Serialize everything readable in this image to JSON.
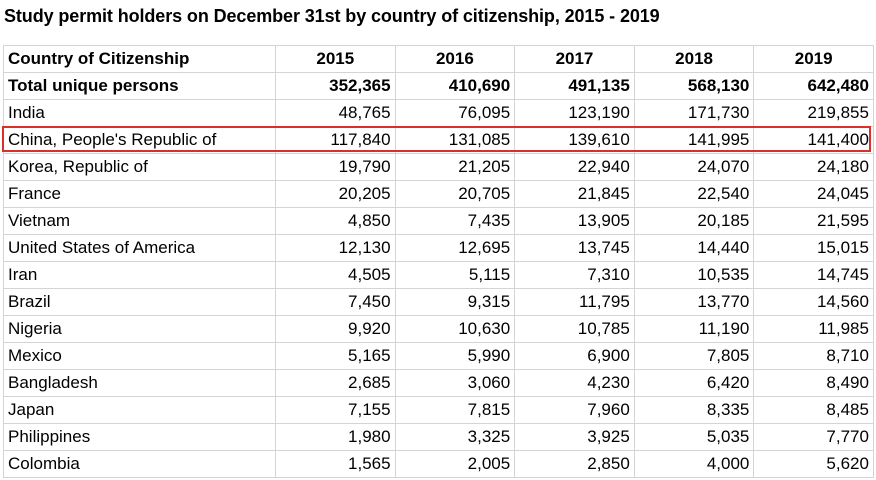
{
  "title": "Study permit holders on December 31st by country of citizenship, 2015 - 2019",
  "header": {
    "country": "Country of Citizenship",
    "years": [
      "2015",
      "2016",
      "2017",
      "2018",
      "2019"
    ]
  },
  "highlight_color": "#d9302c",
  "rows": [
    {
      "country": "Total unique persons",
      "values": [
        "352,365",
        "410,690",
        "491,135",
        "568,130",
        "642,480"
      ]
    },
    {
      "country": "India",
      "values": [
        "48,765",
        "76,095",
        "123,190",
        "171,730",
        "219,855"
      ]
    },
    {
      "country": "China, People's Republic of",
      "values": [
        "117,840",
        "131,085",
        "139,610",
        "141,995",
        "141,400"
      ]
    },
    {
      "country": "Korea, Republic of",
      "values": [
        "19,790",
        "21,205",
        "22,940",
        "24,070",
        "24,180"
      ]
    },
    {
      "country": "France",
      "values": [
        "20,205",
        "20,705",
        "21,845",
        "22,540",
        "24,045"
      ]
    },
    {
      "country": "Vietnam",
      "values": [
        "4,850",
        "7,435",
        "13,905",
        "20,185",
        "21,595"
      ]
    },
    {
      "country": "United States of America",
      "values": [
        "12,130",
        "12,695",
        "13,745",
        "14,440",
        "15,015"
      ]
    },
    {
      "country": "Iran",
      "values": [
        "4,505",
        "5,115",
        "7,310",
        "10,535",
        "14,745"
      ]
    },
    {
      "country": "Brazil",
      "values": [
        "7,450",
        "9,315",
        "11,795",
        "13,770",
        "14,560"
      ]
    },
    {
      "country": "Nigeria",
      "values": [
        "9,920",
        "10,630",
        "10,785",
        "11,190",
        "11,985"
      ]
    },
    {
      "country": "Mexico",
      "values": [
        "5,165",
        "5,990",
        "6,900",
        "7,805",
        "8,710"
      ]
    },
    {
      "country": "Bangladesh",
      "values": [
        "2,685",
        "3,060",
        "4,230",
        "6,420",
        "8,490"
      ]
    },
    {
      "country": "Japan",
      "values": [
        "7,155",
        "7,815",
        "7,960",
        "8,335",
        "8,485"
      ]
    },
    {
      "country": "Philippines",
      "values": [
        "1,980",
        "3,325",
        "3,925",
        "5,035",
        "7,770"
      ]
    },
    {
      "country": "Colombia",
      "values": [
        "1,565",
        "2,005",
        "2,850",
        "4,000",
        "5,620"
      ]
    }
  ]
}
